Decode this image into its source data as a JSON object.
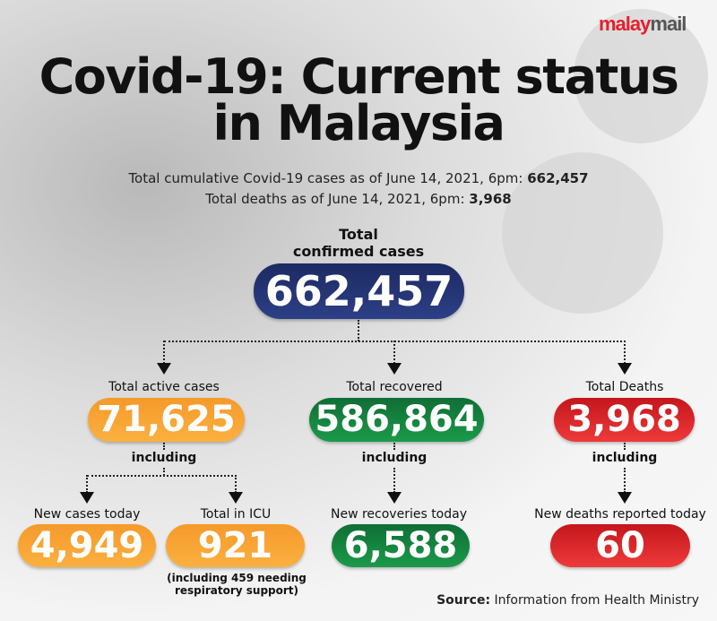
{
  "logo": {
    "part1": "malay",
    "part2": "mail"
  },
  "title": {
    "line1": "Covid-19: Current status",
    "line2": "in Malaysia"
  },
  "subtitle": {
    "cases_text": "Total cumulative Covid-19 cases as of June 14, 2021, 6pm: ",
    "cases_value": "662,457",
    "deaths_text": "Total deaths as of June 14, 2021, 6pm: ",
    "deaths_value": "3,968"
  },
  "total": {
    "label1": "Total",
    "label2": "confirmed cases",
    "value": "662,457"
  },
  "active": {
    "label": "Total active cases",
    "value": "71,625",
    "including": "including",
    "new_label": "New cases today",
    "new_value": "4,949",
    "icu_label": "Total in ICU",
    "icu_value": "921",
    "icu_note1": "(including 459 needing",
    "icu_note2": "respiratory support)"
  },
  "recovered": {
    "label": "Total recovered",
    "value": "586,864",
    "including": "including",
    "new_label": "New recoveries today",
    "new_value": "6,588"
  },
  "deaths": {
    "label": "Total Deaths",
    "value": "3,968",
    "including": "including",
    "new_label": "New deaths reported today",
    "new_value": "60"
  },
  "source": {
    "label": "Source:",
    "text": " Information from Health Ministry"
  },
  "colors": {
    "orange": "#f7a531",
    "green": "#138041",
    "red": "#dd2a2e",
    "navy": "#243372"
  }
}
